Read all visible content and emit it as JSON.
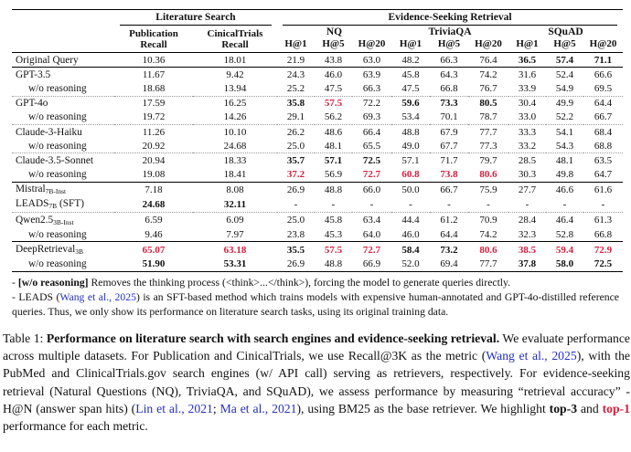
{
  "colors": {
    "highlight_red": "#d81f3d",
    "citation_blue": "#2330c8"
  },
  "table": {
    "group_headers": {
      "literature": "Literature Search",
      "evidence": "Evidence-Seeking Retrieval"
    },
    "col_headers": {
      "publication": [
        "Publication",
        "Recall"
      ],
      "clinicaltrials": [
        "CinicalTrials",
        "Recall"
      ],
      "datasets": [
        "NQ",
        "TriviaQA",
        "SQuAD"
      ],
      "metrics": [
        "H@1",
        "H@5",
        "H@20"
      ]
    },
    "rows": [
      {
        "label": "Original Query",
        "sub": "",
        "suffix": "",
        "indent": false,
        "rule_after": "solid",
        "values": [
          {
            "v": "10.36",
            "s": "n"
          },
          {
            "v": "18.01",
            "s": "n"
          },
          {
            "v": "21.9",
            "s": "n"
          },
          {
            "v": "43.8",
            "s": "n"
          },
          {
            "v": "63.0",
            "s": "n"
          },
          {
            "v": "48.2",
            "s": "n"
          },
          {
            "v": "66.3",
            "s": "n"
          },
          {
            "v": "76.4",
            "s": "n"
          },
          {
            "v": "36.5",
            "s": "b"
          },
          {
            "v": "57.4",
            "s": "b"
          },
          {
            "v": "71.1",
            "s": "b"
          }
        ]
      },
      {
        "label": "GPT-3.5",
        "sub": "",
        "suffix": "",
        "indent": false,
        "rule_after": "none",
        "values": [
          {
            "v": "11.67",
            "s": "n"
          },
          {
            "v": "9.42",
            "s": "n"
          },
          {
            "v": "24.3",
            "s": "n"
          },
          {
            "v": "46.0",
            "s": "n"
          },
          {
            "v": "63.9",
            "s": "n"
          },
          {
            "v": "45.8",
            "s": "n"
          },
          {
            "v": "64.3",
            "s": "n"
          },
          {
            "v": "74.2",
            "s": "n"
          },
          {
            "v": "31.6",
            "s": "n"
          },
          {
            "v": "52.4",
            "s": "n"
          },
          {
            "v": "66.6",
            "s": "n"
          }
        ]
      },
      {
        "label": "w/o reasoning",
        "sub": "",
        "suffix": "",
        "indent": true,
        "rule_after": "dotted",
        "values": [
          {
            "v": "18.68",
            "s": "n"
          },
          {
            "v": "13.94",
            "s": "n"
          },
          {
            "v": "25.2",
            "s": "n"
          },
          {
            "v": "47.5",
            "s": "n"
          },
          {
            "v": "66.3",
            "s": "n"
          },
          {
            "v": "47.5",
            "s": "n"
          },
          {
            "v": "66.8",
            "s": "n"
          },
          {
            "v": "76.7",
            "s": "n"
          },
          {
            "v": "33.9",
            "s": "n"
          },
          {
            "v": "54.9",
            "s": "n"
          },
          {
            "v": "69.5",
            "s": "n"
          }
        ]
      },
      {
        "label": "GPT-4o",
        "sub": "",
        "suffix": "",
        "indent": false,
        "rule_after": "none",
        "values": [
          {
            "v": "17.59",
            "s": "n"
          },
          {
            "v": "16.25",
            "s": "n"
          },
          {
            "v": "35.8",
            "s": "b"
          },
          {
            "v": "57.5",
            "s": "r"
          },
          {
            "v": "72.2",
            "s": "n"
          },
          {
            "v": "59.6",
            "s": "b"
          },
          {
            "v": "73.3",
            "s": "b"
          },
          {
            "v": "80.5",
            "s": "b"
          },
          {
            "v": "30.4",
            "s": "n"
          },
          {
            "v": "49.9",
            "s": "n"
          },
          {
            "v": "64.4",
            "s": "n"
          }
        ]
      },
      {
        "label": "w/o reasoning",
        "sub": "",
        "suffix": "",
        "indent": true,
        "rule_after": "dotted",
        "values": [
          {
            "v": "19.72",
            "s": "n"
          },
          {
            "v": "14.26",
            "s": "n"
          },
          {
            "v": "29.1",
            "s": "n"
          },
          {
            "v": "56.2",
            "s": "n"
          },
          {
            "v": "69.3",
            "s": "n"
          },
          {
            "v": "53.4",
            "s": "n"
          },
          {
            "v": "70.1",
            "s": "n"
          },
          {
            "v": "78.7",
            "s": "n"
          },
          {
            "v": "33.0",
            "s": "n"
          },
          {
            "v": "52.2",
            "s": "n"
          },
          {
            "v": "66.7",
            "s": "n"
          }
        ]
      },
      {
        "label": "Claude-3-Haiku",
        "sub": "",
        "suffix": "",
        "indent": false,
        "rule_after": "none",
        "values": [
          {
            "v": "11.26",
            "s": "n"
          },
          {
            "v": "10.10",
            "s": "n"
          },
          {
            "v": "26.2",
            "s": "n"
          },
          {
            "v": "48.6",
            "s": "n"
          },
          {
            "v": "66.4",
            "s": "n"
          },
          {
            "v": "48.8",
            "s": "n"
          },
          {
            "v": "67.9",
            "s": "n"
          },
          {
            "v": "77.7",
            "s": "n"
          },
          {
            "v": "33.3",
            "s": "n"
          },
          {
            "v": "54.1",
            "s": "n"
          },
          {
            "v": "68.4",
            "s": "n"
          }
        ]
      },
      {
        "label": "w/o reasoning",
        "sub": "",
        "suffix": "",
        "indent": true,
        "rule_after": "dotted",
        "values": [
          {
            "v": "20.92",
            "s": "n"
          },
          {
            "v": "24.68",
            "s": "n"
          },
          {
            "v": "25.0",
            "s": "n"
          },
          {
            "v": "48.1",
            "s": "n"
          },
          {
            "v": "65.5",
            "s": "n"
          },
          {
            "v": "49.0",
            "s": "n"
          },
          {
            "v": "67.7",
            "s": "n"
          },
          {
            "v": "77.3",
            "s": "n"
          },
          {
            "v": "33.2",
            "s": "n"
          },
          {
            "v": "54.3",
            "s": "n"
          },
          {
            "v": "68.8",
            "s": "n"
          }
        ]
      },
      {
        "label": "Claude-3.5-Sonnet",
        "sub": "",
        "suffix": "",
        "indent": false,
        "rule_after": "none",
        "values": [
          {
            "v": "20.94",
            "s": "n"
          },
          {
            "v": "18.33",
            "s": "n"
          },
          {
            "v": "35.7",
            "s": "b"
          },
          {
            "v": "57.1",
            "s": "b"
          },
          {
            "v": "72.5",
            "s": "b"
          },
          {
            "v": "57.1",
            "s": "n"
          },
          {
            "v": "71.7",
            "s": "n"
          },
          {
            "v": "79.7",
            "s": "n"
          },
          {
            "v": "28.5",
            "s": "n"
          },
          {
            "v": "48.1",
            "s": "n"
          },
          {
            "v": "63.5",
            "s": "n"
          }
        ]
      },
      {
        "label": "w/o reasoning",
        "sub": "",
        "suffix": "",
        "indent": true,
        "rule_after": "mid",
        "values": [
          {
            "v": "19.08",
            "s": "n"
          },
          {
            "v": "18.41",
            "s": "n"
          },
          {
            "v": "37.2",
            "s": "r"
          },
          {
            "v": "56.9",
            "s": "n"
          },
          {
            "v": "72.7",
            "s": "r"
          },
          {
            "v": "60.8",
            "s": "r"
          },
          {
            "v": "73.8",
            "s": "r"
          },
          {
            "v": "80.6",
            "s": "r"
          },
          {
            "v": "30.3",
            "s": "n"
          },
          {
            "v": "49.8",
            "s": "n"
          },
          {
            "v": "64.7",
            "s": "n"
          }
        ]
      },
      {
        "label": "Mistral",
        "sub": "7B-Inst",
        "suffix": "",
        "indent": false,
        "rule_after": "none",
        "values": [
          {
            "v": "7.18",
            "s": "n"
          },
          {
            "v": "8.08",
            "s": "n"
          },
          {
            "v": "26.9",
            "s": "n"
          },
          {
            "v": "48.8",
            "s": "n"
          },
          {
            "v": "66.0",
            "s": "n"
          },
          {
            "v": "50.0",
            "s": "n"
          },
          {
            "v": "66.7",
            "s": "n"
          },
          {
            "v": "75.9",
            "s": "n"
          },
          {
            "v": "27.7",
            "s": "n"
          },
          {
            "v": "46.6",
            "s": "n"
          },
          {
            "v": "61.6",
            "s": "n"
          }
        ]
      },
      {
        "label": "LEADS",
        "sub": "7B",
        "suffix": " (SFT)",
        "indent": false,
        "rule_after": "dotted",
        "values": [
          {
            "v": "24.68",
            "s": "b"
          },
          {
            "v": "32.11",
            "s": "b"
          },
          {
            "v": "-",
            "s": "n"
          },
          {
            "v": "-",
            "s": "n"
          },
          {
            "v": "-",
            "s": "n"
          },
          {
            "v": "-",
            "s": "n"
          },
          {
            "v": "-",
            "s": "n"
          },
          {
            "v": "-",
            "s": "n"
          },
          {
            "v": "-",
            "s": "n"
          },
          {
            "v": "-",
            "s": "n"
          },
          {
            "v": "-",
            "s": "n"
          }
        ]
      },
      {
        "label": "Qwen2.5",
        "sub": "3B-Inst",
        "suffix": "",
        "indent": false,
        "rule_after": "none",
        "values": [
          {
            "v": "6.59",
            "s": "n"
          },
          {
            "v": "6.09",
            "s": "n"
          },
          {
            "v": "25.0",
            "s": "n"
          },
          {
            "v": "45.8",
            "s": "n"
          },
          {
            "v": "63.4",
            "s": "n"
          },
          {
            "v": "44.4",
            "s": "n"
          },
          {
            "v": "61.2",
            "s": "n"
          },
          {
            "v": "70.9",
            "s": "n"
          },
          {
            "v": "28.4",
            "s": "n"
          },
          {
            "v": "46.4",
            "s": "n"
          },
          {
            "v": "61.3",
            "s": "n"
          }
        ]
      },
      {
        "label": "w/o reasoning",
        "sub": "",
        "suffix": "",
        "indent": true,
        "rule_after": "solid",
        "values": [
          {
            "v": "9.46",
            "s": "n"
          },
          {
            "v": "7.97",
            "s": "n"
          },
          {
            "v": "23.8",
            "s": "n"
          },
          {
            "v": "45.3",
            "s": "n"
          },
          {
            "v": "64.0",
            "s": "n"
          },
          {
            "v": "46.0",
            "s": "n"
          },
          {
            "v": "64.4",
            "s": "n"
          },
          {
            "v": "74.2",
            "s": "n"
          },
          {
            "v": "32.3",
            "s": "n"
          },
          {
            "v": "52.8",
            "s": "n"
          },
          {
            "v": "66.8",
            "s": "n"
          }
        ]
      },
      {
        "label": "DeepRetrieval",
        "sub": "3B",
        "suffix": "",
        "indent": false,
        "rule_after": "none",
        "values": [
          {
            "v": "65.07",
            "s": "r"
          },
          {
            "v": "63.18",
            "s": "r"
          },
          {
            "v": "35.5",
            "s": "b"
          },
          {
            "v": "57.5",
            "s": "r"
          },
          {
            "v": "72.7",
            "s": "r"
          },
          {
            "v": "58.4",
            "s": "b"
          },
          {
            "v": "73.2",
            "s": "b"
          },
          {
            "v": "80.6",
            "s": "r"
          },
          {
            "v": "38.5",
            "s": "r"
          },
          {
            "v": "59.4",
            "s": "r"
          },
          {
            "v": "72.9",
            "s": "r"
          }
        ]
      },
      {
        "label": "w/o reasoning",
        "sub": "",
        "suffix": "",
        "indent": true,
        "rule_after": "thick",
        "values": [
          {
            "v": "51.90",
            "s": "b"
          },
          {
            "v": "53.31",
            "s": "b"
          },
          {
            "v": "26.9",
            "s": "n"
          },
          {
            "v": "48.8",
            "s": "n"
          },
          {
            "v": "66.9",
            "s": "n"
          },
          {
            "v": "52.0",
            "s": "n"
          },
          {
            "v": "69.4",
            "s": "n"
          },
          {
            "v": "77.7",
            "s": "n"
          },
          {
            "v": "37.8",
            "s": "b"
          },
          {
            "v": "58.0",
            "s": "b"
          },
          {
            "v": "72.5",
            "s": "b"
          }
        ]
      }
    ]
  },
  "footnotes": [
    [
      {
        "t": "- ",
        "s": "n"
      },
      {
        "t": "[w/o reasoning]",
        "s": "b"
      },
      {
        "t": " Removes the thinking process (<think>...</think>), forcing the model to generate queries directly.",
        "s": "n"
      }
    ],
    [
      {
        "t": "- LEADS (",
        "s": "n"
      },
      {
        "t": "Wang et al., 2025",
        "s": "blue"
      },
      {
        "t": ") is an SFT-based method which trains models with expensive human-annotated and GPT-4o-distilled reference queries. Thus, we only show its performance on literature search tasks, using its original training data.",
        "s": "n"
      }
    ]
  ],
  "caption": [
    {
      "t": "Table 1: ",
      "s": "n"
    },
    {
      "t": "Performance on literature search with search engines and evidence-seeking retrieval.",
      "s": "b"
    },
    {
      "t": " We evaluate performance across multiple datasets. For Publication and CinicalTrials, we use Recall@3K as the metric (",
      "s": "n"
    },
    {
      "t": "Wang et al., 2025",
      "s": "blue"
    },
    {
      "t": "), with the PubMed and ClinicalTrials.gov search engines (w/ API call) serving as retrievers, respectively.  For evidence-seeking retrieval (Natural Questions (NQ), TriviaQA, and SQuAD), we assess performance by measuring “retrieval accuracy” - H@N (answer span hits) (",
      "s": "n"
    },
    {
      "t": "Lin et al., 2021",
      "s": "blue"
    },
    {
      "t": "; ",
      "s": "n"
    },
    {
      "t": "Ma et al., 2021",
      "s": "blue"
    },
    {
      "t": "), using BM25 as the base retriever. We highlight ",
      "s": "n"
    },
    {
      "t": "top-3",
      "s": "b"
    },
    {
      "t": " and ",
      "s": "n"
    },
    {
      "t": "top-1",
      "s": "r"
    },
    {
      "t": " performance for each metric.",
      "s": "n"
    }
  ]
}
